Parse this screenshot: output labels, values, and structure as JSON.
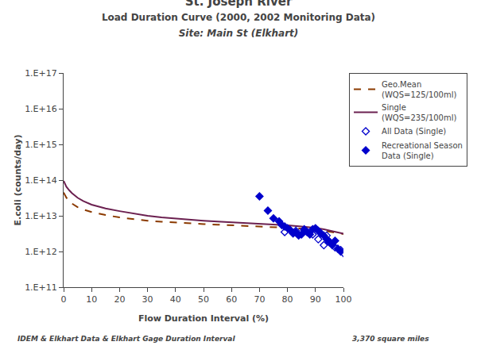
{
  "chart_data": {
    "type": "line",
    "title": "St. Joseph River",
    "subtitle": [
      "Load Duration Curve (2000, 2002 Monitoring Data)",
      "Site: Main St (Elkhart)"
    ],
    "x_label": "Flow Duration Interval (%)",
    "y_label": "E.coli (counts/day)",
    "annotations": [
      "IDEM & Elkhart Data & Elkhart Gage Duration Interval",
      "3,370 square miles"
    ],
    "log": "y",
    "grid": false,
    "legend": "right",
    "xlim": [
      0,
      100
    ],
    "xticks": [
      0,
      10,
      20,
      30,
      40,
      50,
      60,
      70,
      80,
      90,
      100
    ],
    "ylim": [
      100000000000.0,
      1e+17
    ],
    "yticks": [
      {
        "value": 100000000000.0,
        "label": "1.E+11"
      },
      {
        "value": 1000000000000.0,
        "label": "1.E+12"
      },
      {
        "value": 10000000000000.0,
        "label": "1.E+13"
      },
      {
        "value": 100000000000000.0,
        "label": "1.E+14"
      },
      {
        "value": 1000000000000000.0,
        "label": "1.E+15"
      },
      {
        "value": 1e+16,
        "label": "1.E+16"
      },
      {
        "value": 1e+17,
        "label": "1.E+17"
      }
    ],
    "series": [
      {
        "name": "Geo.Mean\n(WQS=125/100ml)",
        "type": "line",
        "line_style": "dashed",
        "color": "#8B3A00",
        "x": [
          0,
          0.5,
          1,
          2,
          3,
          5,
          7,
          10,
          15,
          20,
          25,
          30,
          35,
          40,
          45,
          50,
          55,
          60,
          65,
          70,
          75,
          80,
          85,
          90,
          93,
          95,
          97,
          99,
          100
        ],
        "values": [
          45000000000000.0,
          38000000000000.0,
          32000000000000.0,
          26000000000000.0,
          22000000000000.0,
          17500000000000.0,
          15000000000000.0,
          12800000000000.0,
          10500000000000.0,
          9000000000000.0,
          8000000000000.0,
          7300000000000.0,
          6800000000000.0,
          6400000000000.0,
          6100000000000.0,
          5850000000000.0,
          5650000000000.0,
          5450000000000.0,
          5250000000000.0,
          5050000000000.0,
          4850000000000.0,
          4600000000000.0,
          4350000000000.0,
          4050000000000.0,
          3800000000000.0,
          3600000000000.0,
          3400000000000.0,
          3200000000000.0,
          3100000000000.0
        ]
      },
      {
        "name": "Single\n(WQS=235/100ml)",
        "type": "line",
        "line_style": "solid",
        "color": "#6B2050",
        "x": [
          0,
          0.5,
          1,
          2,
          3,
          5,
          7,
          10,
          15,
          20,
          25,
          30,
          35,
          40,
          45,
          50,
          55,
          60,
          65,
          70,
          75,
          80,
          85,
          90,
          93,
          95,
          97,
          99,
          100
        ],
        "values": [
          95000000000000.0,
          78000000000000.0,
          65000000000000.0,
          52000000000000.0,
          43000000000000.0,
          32000000000000.0,
          26000000000000.0,
          20500000000000.0,
          16000000000000.0,
          13500000000000.0,
          11500000000000.0,
          10000000000000.0,
          9000000000000.0,
          8300000000000.0,
          7800000000000.0,
          7300000000000.0,
          6900000000000.0,
          6600000000000.0,
          6300000000000.0,
          6000000000000.0,
          5700000000000.0,
          5400000000000.0,
          5000000000000.0,
          4600000000000.0,
          4200000000000.0,
          3900000000000.0,
          3600000000000.0,
          3300000000000.0,
          3150000000000.0
        ]
      },
      {
        "name": "All Data (Single)",
        "type": "scatter",
        "marker": "open_diamond",
        "color": "#0000CC",
        "x": [
          79,
          83,
          86,
          89,
          91,
          93,
          94,
          95,
          97,
          99,
          100
        ],
        "values": [
          3500000000000.0,
          3800000000000.0,
          4200000000000.0,
          3000000000000.0,
          2200000000000.0,
          1500000000000.0,
          2800000000000.0,
          1800000000000.0,
          1300000000000.0,
          1100000000000.0,
          900000000000.0
        ]
      },
      {
        "name": "Recreational Season\nData (Single)",
        "type": "scatter",
        "marker": "diamond",
        "color": "#0000CC",
        "x": [
          70,
          73,
          75,
          77,
          78,
          79,
          80,
          81,
          82,
          83,
          84,
          85,
          86,
          87,
          88,
          89,
          90,
          91,
          92,
          93,
          94,
          95,
          96,
          97,
          98,
          99
        ],
        "values": [
          35000000000000.0,
          14000000000000.0,
          8500000000000.0,
          7000000000000.0,
          5500000000000.0,
          5000000000000.0,
          4500000000000.0,
          4000000000000.0,
          3200000000000.0,
          3500000000000.0,
          2800000000000.0,
          3000000000000.0,
          4000000000000.0,
          3500000000000.0,
          3000000000000.0,
          4200000000000.0,
          4500000000000.0,
          3800000000000.0,
          3200000000000.0,
          2800000000000.0,
          2200000000000.0,
          1900000000000.0,
          1500000000000.0,
          2000000000000.0,
          1200000000000.0,
          1000000000000.0
        ]
      }
    ]
  }
}
